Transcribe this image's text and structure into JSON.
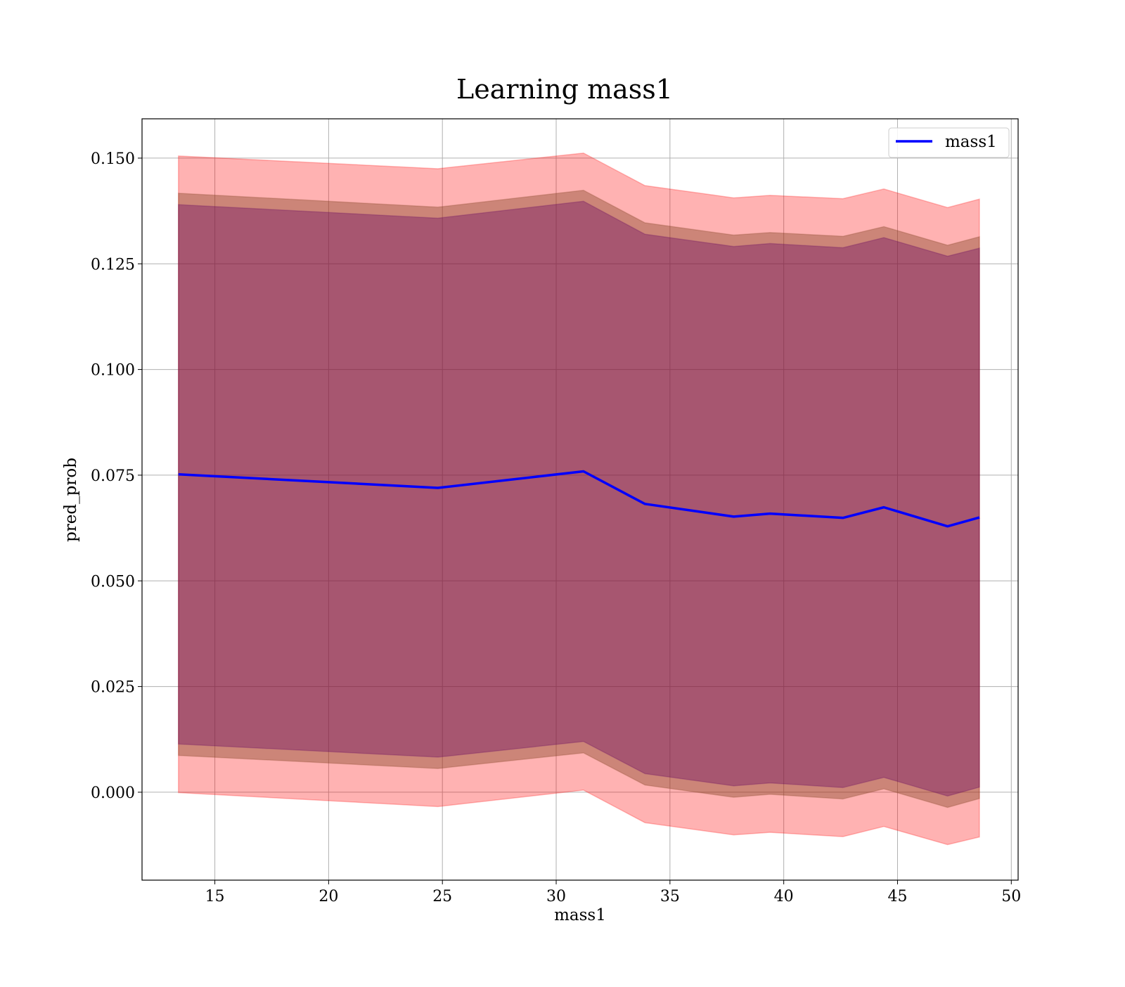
{
  "chart_data": {
    "type": "line",
    "title": "Learning mass1",
    "xlabel": "mass1",
    "ylabel": "pred_prob",
    "xlim": [
      11.8,
      50.3
    ],
    "ylim": [
      -0.0208,
      0.1593
    ],
    "x_ticks": [
      15,
      20,
      25,
      30,
      35,
      40,
      45,
      50
    ],
    "x_tick_labels": [
      "15",
      "20",
      "25",
      "30",
      "35",
      "40",
      "45",
      "50"
    ],
    "y_ticks": [
      0.0,
      0.025,
      0.05,
      0.075,
      0.1,
      0.125,
      0.15
    ],
    "y_tick_labels": [
      "0.000",
      "0.025",
      "0.050",
      "0.075",
      "0.100",
      "0.125",
      "0.150"
    ],
    "grid": true,
    "legend_position": "top-right",
    "colors": {
      "line": "#0000ff",
      "band": "#ff0000",
      "grid": "#b0b0b0"
    },
    "x": [
      13.4,
      24.8,
      31.2,
      33.9,
      37.8,
      39.4,
      42.6,
      44.4,
      47.2,
      48.6
    ],
    "series": [
      {
        "name": "mass1",
        "values": [
          0.0752,
          0.072,
          0.0759,
          0.0682,
          0.0652,
          0.0659,
          0.0649,
          0.0674,
          0.0629,
          0.065
        ]
      }
    ],
    "bands": [
      {
        "color": "#ff0000",
        "opacity": 0.3,
        "upper": [
          0.1505,
          0.1475,
          0.1512,
          0.1435,
          0.1406,
          0.1412,
          0.1404,
          0.1427,
          0.1383,
          0.1403
        ],
        "lower": [
          -0.0001,
          -0.0034,
          0.0005,
          -0.0072,
          -0.0101,
          -0.0095,
          -0.0105,
          -0.0081,
          -0.0124,
          -0.0106
        ]
      },
      {
        "color": "#804020",
        "opacity": 0.4,
        "upper": [
          0.1417,
          0.1384,
          0.1424,
          0.1347,
          0.1318,
          0.1324,
          0.1315,
          0.1338,
          0.1294,
          0.1314
        ],
        "lower": [
          0.0087,
          0.0056,
          0.0093,
          0.0017,
          -0.0012,
          -0.0005,
          -0.0016,
          0.0008,
          -0.0036,
          -0.0015
        ]
      },
      {
        "color": "#600060",
        "opacity": 0.35,
        "upper": [
          0.139,
          0.1358,
          0.1398,
          0.132,
          0.1291,
          0.1298,
          0.1288,
          0.1312,
          0.1268,
          0.1287
        ],
        "lower": [
          0.0114,
          0.0083,
          0.012,
          0.0044,
          0.0015,
          0.0022,
          0.0011,
          0.0035,
          -0.0009,
          0.0012
        ]
      }
    ]
  }
}
